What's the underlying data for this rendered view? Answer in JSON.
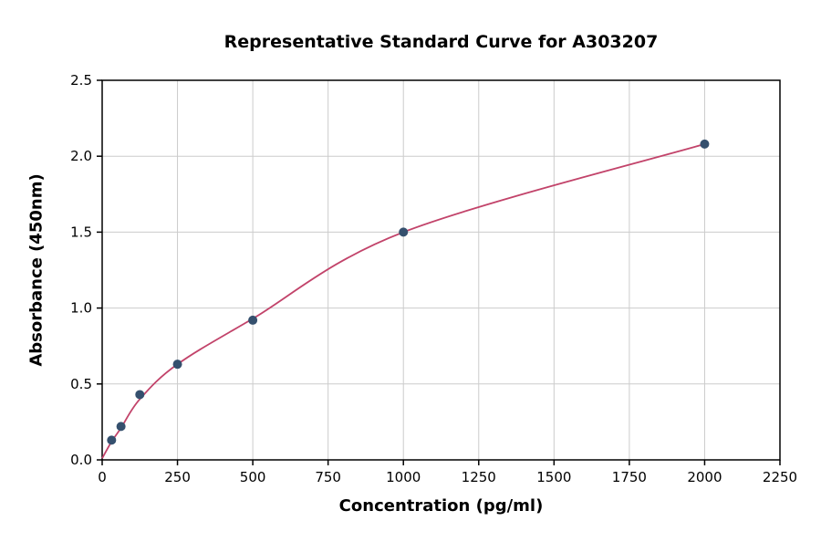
{
  "chart_data": {
    "type": "scatter",
    "title": "Representative Standard Curve for A303207",
    "xlabel": "Concentration (pg/ml)",
    "ylabel": "Absorbance (450nm)",
    "xlim": [
      0,
      2250
    ],
    "ylim": [
      0,
      2.5
    ],
    "xticks": [
      0,
      250,
      500,
      750,
      1000,
      1250,
      1500,
      1750,
      2000,
      2250
    ],
    "xtick_labels": [
      "0",
      "250",
      "500",
      "750",
      "1000",
      "1250",
      "1500",
      "1750",
      "2000",
      "2250"
    ],
    "yticks": [
      0,
      0.5,
      1.0,
      1.5,
      2.0,
      2.5
    ],
    "ytick_labels": [
      "0.0",
      "0.5",
      "1.0",
      "1.5",
      "2.0",
      "2.5"
    ],
    "grid": true,
    "legend": "none",
    "points": [
      {
        "x": 31.25,
        "y": 0.13
      },
      {
        "x": 62.5,
        "y": 0.22
      },
      {
        "x": 125,
        "y": 0.43
      },
      {
        "x": 250,
        "y": 0.63
      },
      {
        "x": 500,
        "y": 0.92
      },
      {
        "x": 1000,
        "y": 1.5
      },
      {
        "x": 2000,
        "y": 2.08
      }
    ],
    "fit_curve": [
      {
        "x": 0,
        "y": 0.01
      },
      {
        "x": 31.25,
        "y": 0.12
      },
      {
        "x": 62.5,
        "y": 0.21
      },
      {
        "x": 125,
        "y": 0.4
      },
      {
        "x": 250,
        "y": 0.63
      },
      {
        "x": 500,
        "y": 0.93
      },
      {
        "x": 1000,
        "y": 1.5
      },
      {
        "x": 2000,
        "y": 2.08
      }
    ],
    "colors": {
      "point": "#35506e",
      "curve": "#c2436a",
      "grid": "#cccccc",
      "axis": "#000000",
      "background": "#ffffff"
    }
  }
}
